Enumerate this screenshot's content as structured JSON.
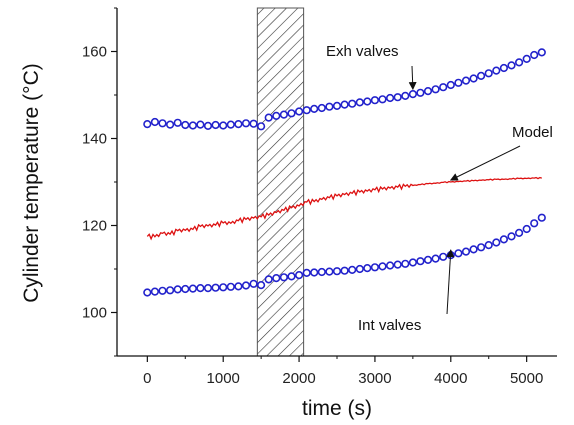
{
  "chart_data": {
    "type": "scatter",
    "xlabel": "time (s)",
    "ylabel": "Cylinder temperature (°C)",
    "xlim": [
      -400,
      5400
    ],
    "ylim": [
      90,
      170
    ],
    "xticks": [
      0,
      1000,
      2000,
      3000,
      4000,
      5000
    ],
    "yticks": [
      100,
      120,
      140,
      160
    ],
    "grid": false,
    "shaded_region": {
      "x": [
        1450,
        2060
      ],
      "pattern": "hatched"
    },
    "series": [
      {
        "name": "Exh valves",
        "style": "markers",
        "marker": "open-circle",
        "color": "#2222cc",
        "x": [
          0,
          100,
          200,
          300,
          400,
          500,
          600,
          700,
          800,
          900,
          1000,
          1100,
          1200,
          1300,
          1400,
          1500,
          1600,
          1700,
          1800,
          1900,
          2000,
          2100,
          2200,
          2300,
          2400,
          2500,
          2600,
          2700,
          2800,
          2900,
          3000,
          3100,
          3200,
          3300,
          3400,
          3500,
          3600,
          3700,
          3800,
          3900,
          4000,
          4100,
          4200,
          4300,
          4400,
          4500,
          4600,
          4700,
          4800,
          4900,
          5000,
          5100,
          5200
        ],
        "y": [
          143.3,
          143.8,
          143.5,
          143.2,
          143.6,
          143.1,
          143.0,
          143.2,
          142.9,
          143.1,
          143.0,
          143.2,
          143.3,
          143.5,
          143.4,
          142.8,
          144.8,
          145.2,
          145.5,
          145.8,
          146.2,
          146.5,
          146.8,
          147.0,
          147.3,
          147.5,
          147.8,
          148.0,
          148.3,
          148.5,
          148.8,
          149.0,
          149.3,
          149.5,
          149.8,
          150.2,
          150.5,
          150.9,
          151.3,
          151.8,
          152.3,
          152.8,
          153.3,
          153.8,
          154.4,
          155.0,
          155.6,
          156.2,
          156.8,
          157.5,
          158.3,
          159.2,
          159.8
        ]
      },
      {
        "name": "Model",
        "style": "line",
        "color": "#dd1111",
        "x": [
          0,
          100,
          200,
          300,
          400,
          500,
          600,
          700,
          800,
          900,
          1000,
          1100,
          1200,
          1300,
          1400,
          1500,
          1600,
          1700,
          1800,
          1900,
          2000,
          2100,
          2200,
          2300,
          2400,
          2500,
          2600,
          2700,
          2800,
          2900,
          3000,
          3100,
          3200,
          3300,
          3400,
          3500,
          3600,
          3700,
          3800,
          3900,
          4000,
          4100,
          4200,
          4300,
          4400,
          4500,
          4600,
          4700,
          4800,
          4900,
          5000,
          5100,
          5200
        ],
        "y": [
          117.5,
          117.4,
          118.2,
          118.0,
          118.8,
          118.9,
          119.1,
          119.8,
          119.9,
          120.1,
          120.6,
          120.5,
          121.1,
          121.4,
          121.7,
          122.0,
          122.4,
          123.0,
          123.5,
          124.1,
          124.5,
          125.4,
          125.5,
          126.0,
          126.4,
          126.8,
          127.1,
          127.4,
          127.7,
          127.9,
          128.2,
          128.4,
          128.6,
          128.8,
          129.0,
          129.2,
          129.4,
          129.6,
          129.7,
          129.9,
          130.0,
          130.1,
          130.2,
          130.3,
          130.4,
          130.5,
          130.6,
          130.6,
          130.7,
          130.8,
          130.8,
          130.9,
          130.9
        ]
      },
      {
        "name": "Int valves",
        "style": "markers",
        "marker": "open-circle",
        "color": "#2222cc",
        "x": [
          0,
          100,
          200,
          300,
          400,
          500,
          600,
          700,
          800,
          900,
          1000,
          1100,
          1200,
          1300,
          1400,
          1500,
          1600,
          1700,
          1800,
          1900,
          2000,
          2100,
          2200,
          2300,
          2400,
          2500,
          2600,
          2700,
          2800,
          2900,
          3000,
          3100,
          3200,
          3300,
          3400,
          3500,
          3600,
          3700,
          3800,
          3900,
          4000,
          4100,
          4200,
          4300,
          4400,
          4500,
          4600,
          4700,
          4800,
          4900,
          5000,
          5100,
          5200
        ],
        "y": [
          104.6,
          104.8,
          105.0,
          105.1,
          105.3,
          105.4,
          105.5,
          105.6,
          105.6,
          105.7,
          105.8,
          105.9,
          106.0,
          106.2,
          106.6,
          106.3,
          107.6,
          107.9,
          108.1,
          108.3,
          108.6,
          109.1,
          109.2,
          109.3,
          109.4,
          109.5,
          109.6,
          109.8,
          110.0,
          110.2,
          110.4,
          110.6,
          110.8,
          111.0,
          111.2,
          111.5,
          111.8,
          112.1,
          112.4,
          112.8,
          113.2,
          113.6,
          114.0,
          114.5,
          115.0,
          115.5,
          116.1,
          116.8,
          117.5,
          118.3,
          119.2,
          120.5,
          121.8
        ]
      }
    ],
    "annotations": [
      {
        "text": "Exh valves",
        "target_series": "Exh valves",
        "arrow_to_x": 3500
      },
      {
        "text": "Model",
        "target_series": "Model",
        "arrow_to_x": 4000
      },
      {
        "text": "Int valves",
        "target_series": "Int valves",
        "arrow_to_x": 4000
      }
    ]
  }
}
